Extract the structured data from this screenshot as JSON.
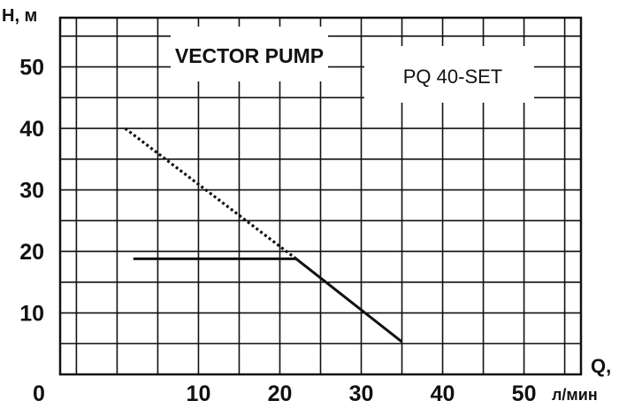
{
  "chart_data": {
    "type": "line",
    "title": "VECTOR PUMP",
    "model": "PQ 40-SET",
    "ylabel": "H, м",
    "xlabel_top": "Q,",
    "xlabel_bottom": "л/мин",
    "origin_label": "0",
    "xlim": [
      -7,
      57
    ],
    "ylim": [
      0,
      58
    ],
    "x_ticks": [
      10,
      20,
      30,
      40,
      50
    ],
    "y_ticks": [
      10,
      20,
      30,
      40,
      50
    ],
    "grid": true,
    "series": [
      {
        "style": "solid",
        "points": [
          [
            2,
            18.8
          ],
          [
            22,
            18.8
          ],
          [
            35,
            5.3
          ]
        ]
      },
      {
        "style": "dotted",
        "points": [
          [
            1,
            40
          ],
          [
            22,
            18.8
          ]
        ]
      }
    ],
    "colors": {
      "line": "#111111",
      "grid": "#111111",
      "background": "#ffffff"
    }
  }
}
